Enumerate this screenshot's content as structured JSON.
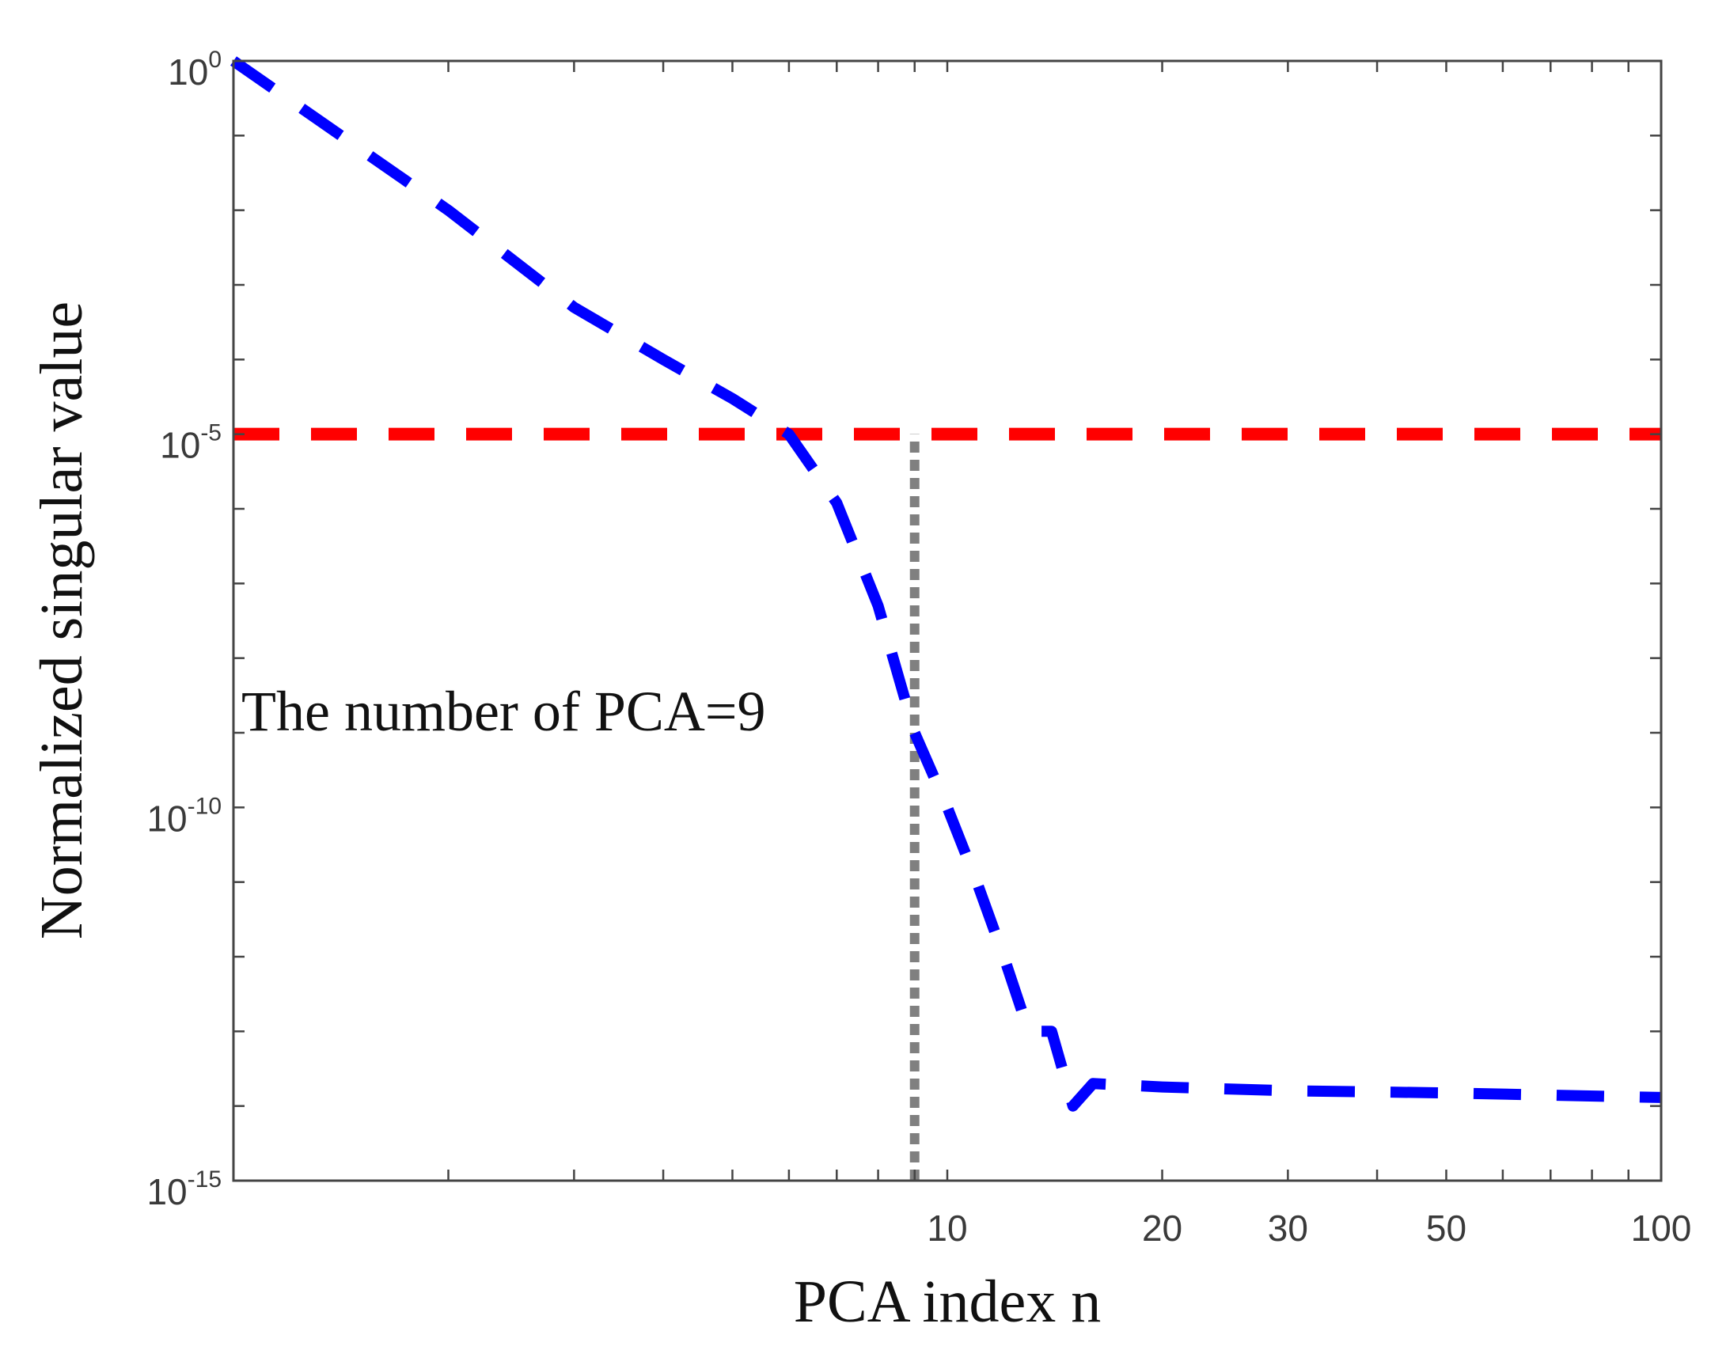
{
  "chart_data": {
    "type": "line",
    "xlabel": "PCA index n",
    "ylabel": "Normalized singular value",
    "x_scale": "log",
    "y_scale": "log",
    "xlim": [
      1,
      100
    ],
    "ylim": [
      1e-15,
      1
    ],
    "x_tick_labels": [
      {
        "value": 10,
        "label": "10"
      },
      {
        "value": 20,
        "label": "20"
      },
      {
        "value": 30,
        "label": "30"
      },
      {
        "value": 50,
        "label": "50"
      },
      {
        "value": 100,
        "label": "100"
      }
    ],
    "x_minor_ticks": [
      2,
      3,
      4,
      5,
      6,
      7,
      8,
      9,
      40,
      60,
      70,
      80,
      90
    ],
    "y_tick_labels": [
      {
        "value": 1,
        "base": "10",
        "exp": "0"
      },
      {
        "value": 1e-05,
        "base": "10",
        "exp": "-5"
      },
      {
        "value": 1e-10,
        "base": "10",
        "exp": "-10"
      },
      {
        "value": 1e-15,
        "base": "10",
        "exp": "-15"
      }
    ],
    "y_minor_exponents": [
      -1,
      -2,
      -3,
      -4,
      -6,
      -7,
      -8,
      -9,
      -11,
      -12,
      -13,
      -14
    ],
    "grid": false,
    "series": [
      {
        "color": "#0000ff",
        "style": "dashed",
        "x": [
          1,
          2,
          3,
          4,
          5,
          6,
          7,
          8,
          9,
          10,
          11,
          12,
          13,
          14,
          15,
          16,
          20,
          30,
          50,
          100
        ],
        "y": [
          1,
          0.01,
          0.0005,
          0.0001,
          3e-05,
          1e-05,
          1.2e-06,
          5e-08,
          1e-09,
          1e-10,
          1e-11,
          1e-12,
          1e-13,
          1e-13,
          1e-14,
          2e-14,
          1.8e-14,
          1.6e-14,
          1.5e-14,
          1.3e-14
        ]
      }
    ],
    "reference_lines": [
      {
        "orientation": "horizontal",
        "y": 1e-05,
        "color": "#ff0000",
        "style": "dashed"
      },
      {
        "orientation": "vertical",
        "x": 9,
        "y_from": 1e-15,
        "y_to": 1e-05,
        "color": "#808080",
        "style": "dotted"
      }
    ],
    "annotation": {
      "text": "The number of PCA=9",
      "x": 1,
      "y": 1e-08
    }
  }
}
